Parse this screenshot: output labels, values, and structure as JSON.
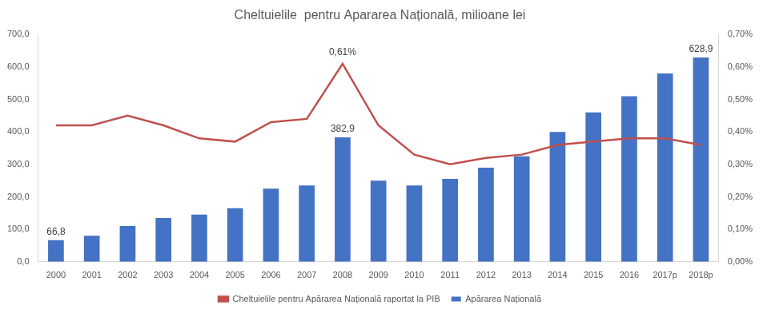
{
  "chart_data": {
    "type": "bar",
    "title": "Cheltuielile  pentru Apararea Națională, milioane lei",
    "categories": [
      "2000",
      "2001",
      "2002",
      "2003",
      "2004",
      "2005",
      "2006",
      "2007",
      "2008",
      "2009",
      "2010",
      "2011",
      "2012",
      "2013",
      "2014",
      "2015",
      "2016",
      "2017p",
      "2018p"
    ],
    "series": [
      {
        "name": "Apărarea Națională",
        "type": "bar",
        "color": "#4472c4",
        "values": [
          66.8,
          80,
          110,
          135,
          145,
          165,
          225,
          235,
          382.9,
          250,
          235,
          255,
          290,
          325,
          400,
          460,
          510,
          580,
          628.9
        ],
        "value_labels": [
          "66,8",
          null,
          null,
          null,
          null,
          null,
          null,
          null,
          "382,9",
          null,
          null,
          null,
          null,
          null,
          null,
          null,
          null,
          null,
          "628,9"
        ]
      },
      {
        "name": "Cheltuielile pentru Apărarea Națională raportat la PIB",
        "type": "line",
        "color": "#c0504d",
        "axis": "y2",
        "values": [
          0.42,
          0.42,
          0.45,
          0.42,
          0.38,
          0.37,
          0.43,
          0.44,
          0.61,
          0.42,
          0.33,
          0.3,
          0.32,
          0.33,
          0.36,
          0.37,
          0.38,
          0.38,
          0.36
        ],
        "value_labels": [
          null,
          null,
          null,
          null,
          null,
          null,
          null,
          null,
          "0,61%",
          null,
          null,
          null,
          null,
          null,
          null,
          null,
          null,
          null,
          null
        ]
      }
    ],
    "ylim": [
      0,
      700
    ],
    "yticks": [
      {
        "value": 0,
        "label": "0,0"
      },
      {
        "value": 100,
        "label": "100,0"
      },
      {
        "value": 200,
        "label": "200,0"
      },
      {
        "value": 300,
        "label": "300,0"
      },
      {
        "value": 400,
        "label": "400,0"
      },
      {
        "value": 500,
        "label": "500,0"
      },
      {
        "value": 600,
        "label": "600,0"
      },
      {
        "value": 700,
        "label": "700,0"
      }
    ],
    "y2lim": [
      0,
      0.7
    ],
    "y2ticks": [
      {
        "value": 0,
        "label": "0,00%"
      },
      {
        "value": 0.1,
        "label": "0,10%"
      },
      {
        "value": 0.2,
        "label": "0,20%"
      },
      {
        "value": 0.3,
        "label": "0,30%"
      },
      {
        "value": 0.4,
        "label": "0,40%"
      },
      {
        "value": 0.5,
        "label": "0,50%"
      },
      {
        "value": 0.6,
        "label": "0,60%"
      },
      {
        "value": 0.7,
        "label": "0,70%"
      }
    ],
    "grid": false,
    "legend": "bottom",
    "data_labels": true
  }
}
